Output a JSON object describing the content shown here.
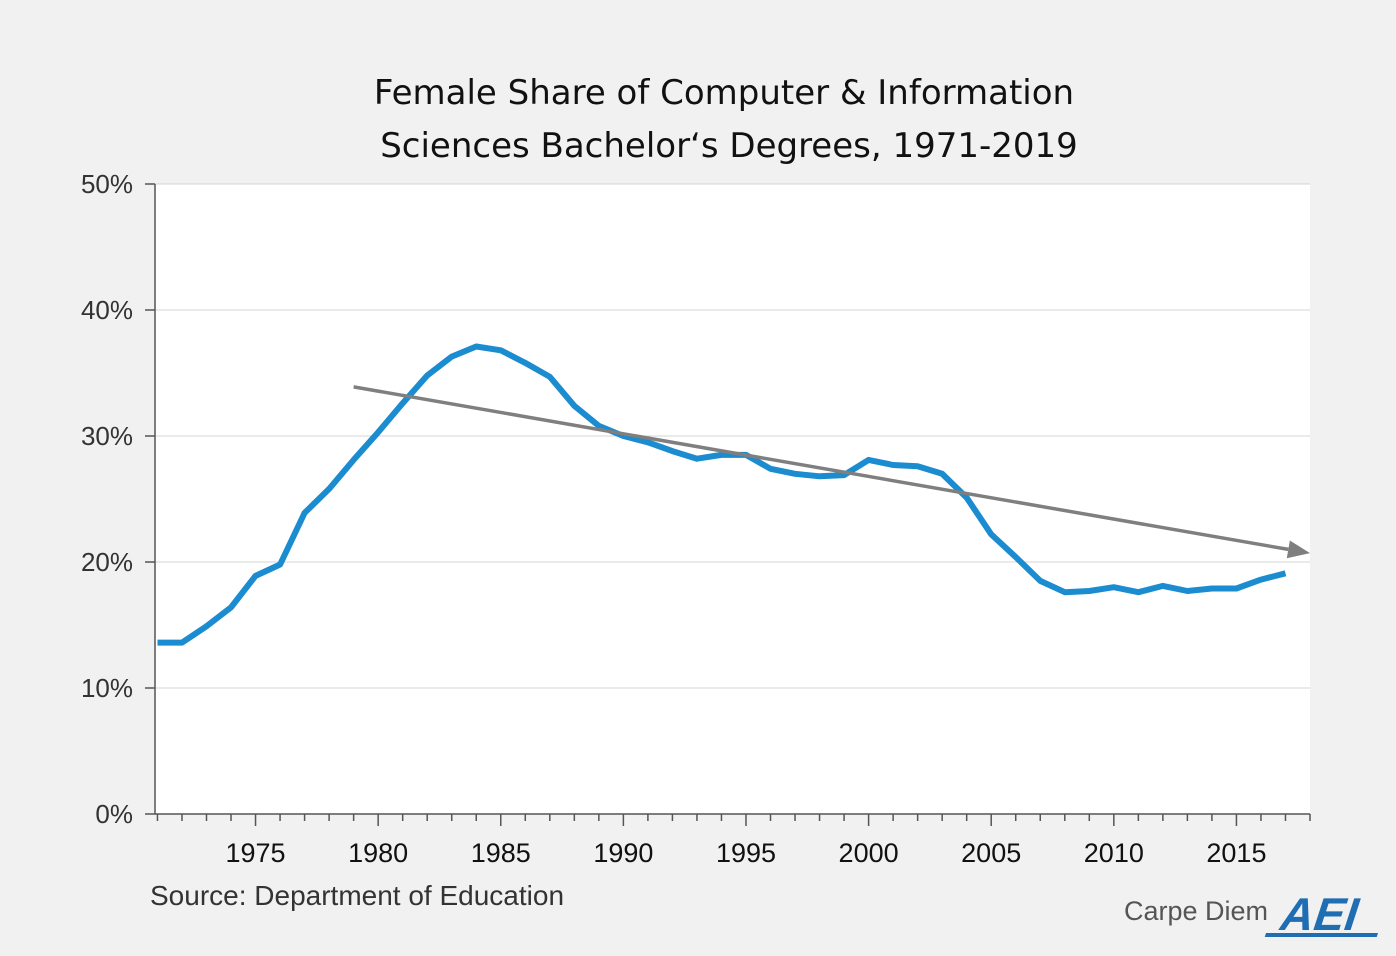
{
  "chart_data": {
    "type": "line",
    "title_lines": [
      "Female Share of Computer & Information",
      "Sciences Bachelor‘s Degrees, 1971-2019"
    ],
    "xlabel": "",
    "ylabel": "",
    "xlim": [
      1970.9,
      2018.0
    ],
    "ylim": [
      0,
      50
    ],
    "yticks": [
      0,
      10,
      20,
      30,
      40,
      50
    ],
    "ytick_labels": [
      "0%",
      "10%",
      "20%",
      "30%",
      "40%",
      "50%"
    ],
    "xticks": [
      1975,
      1980,
      1985,
      1990,
      1995,
      2000,
      2005,
      2010,
      2015
    ],
    "xtick_labels": [
      "1975",
      "1980",
      "1985",
      "1990",
      "1995",
      "2000",
      "2005",
      "2010",
      "2015"
    ],
    "grid": true,
    "series": [
      {
        "color": "#1a8ccf",
        "x": [
          1971,
          1972,
          1973,
          1974,
          1975,
          1976,
          1977,
          1978,
          1979,
          1980,
          1981,
          1982,
          1983,
          1984,
          1985,
          1986,
          1987,
          1988,
          1989,
          1990,
          1991,
          1992,
          1993,
          1994,
          1995,
          1996,
          1997,
          1998,
          1999,
          2000,
          2001,
          2002,
          2003,
          2004,
          2005,
          2006,
          2007,
          2008,
          2009,
          2010,
          2011,
          2012,
          2013,
          2014,
          2015,
          2016,
          2017
        ],
        "y": [
          13.6,
          13.6,
          14.9,
          16.4,
          18.9,
          19.8,
          23.9,
          25.8,
          28.1,
          30.3,
          32.6,
          34.8,
          36.3,
          37.1,
          36.8,
          35.8,
          34.7,
          32.4,
          30.8,
          30.0,
          29.5,
          28.8,
          28.2,
          28.5,
          28.5,
          27.4,
          27.0,
          26.8,
          26.9,
          28.1,
          27.7,
          27.6,
          27.0,
          25.1,
          22.2,
          20.4,
          18.5,
          17.6,
          17.7,
          18.0,
          17.6,
          18.1,
          17.7,
          17.9,
          17.9,
          18.6,
          19.1
        ]
      }
    ],
    "trend_arrow": {
      "color": "#7f7f7f",
      "x": [
        1979,
        2018.0
      ],
      "y": [
        33.9,
        20.7
      ]
    }
  },
  "source": "Source: Department of Education",
  "brand": {
    "label": "Carpe Diem",
    "logo_text": "AEI",
    "logo_color": "#1f6db3"
  }
}
